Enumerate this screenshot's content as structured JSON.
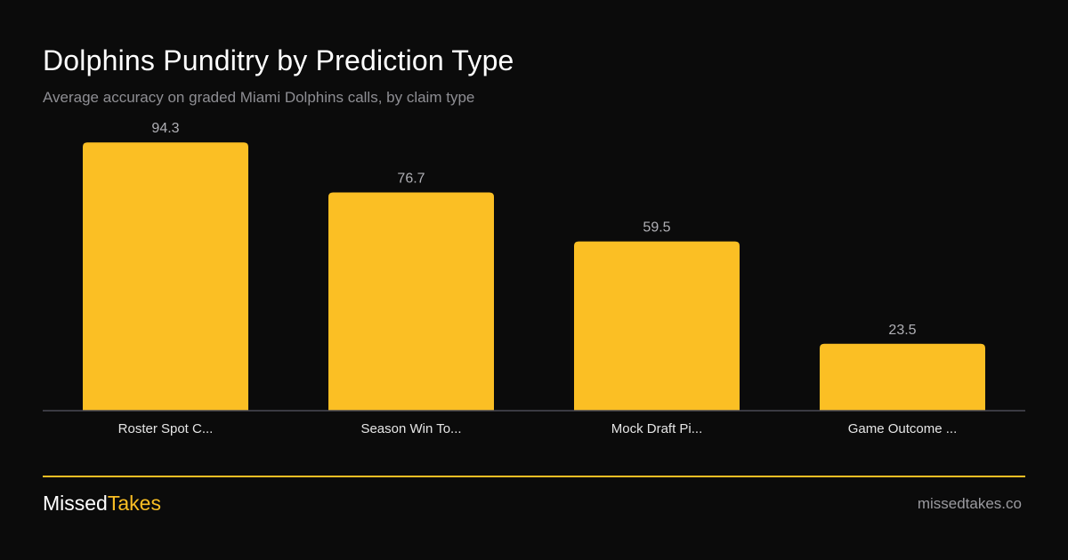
{
  "header": {
    "title": "Dolphins Punditry by Prediction Type",
    "subtitle": "Average accuracy on graded Miami Dolphins calls, by claim type"
  },
  "chart_data": {
    "type": "bar",
    "categories": [
      "Roster Spot C...",
      "Season Win To...",
      "Mock Draft Pi...",
      "Game Outcome ..."
    ],
    "values": [
      94.3,
      76.7,
      59.5,
      23.5
    ],
    "value_labels": [
      "94.3",
      "76.7",
      "59.5",
      "23.5"
    ],
    "title": "Dolphins Punditry by Prediction Type",
    "subtitle": "Average accuracy on graded Miami Dolphins calls, by claim type",
    "xlabel": "",
    "ylabel": "",
    "ylim": [
      0,
      100
    ],
    "grid": false,
    "legend": "none",
    "colors": {
      "bar": "#fbbf24",
      "value_label": "#b0b0b5",
      "category_label": "#e5e5e5",
      "axis": "#4a4a55"
    }
  },
  "footer": {
    "brand_first": "Missed",
    "brand_second": "Takes",
    "site": "missedtakes.co",
    "accent": "#fbbf24"
  }
}
